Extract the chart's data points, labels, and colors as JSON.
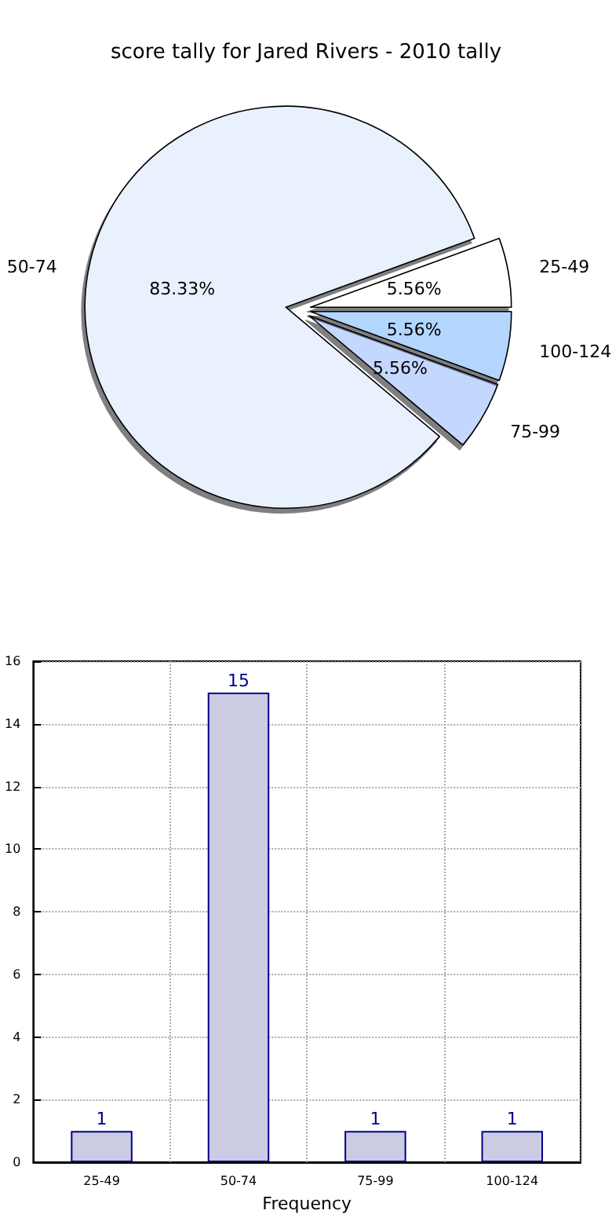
{
  "chart_data": [
    {
      "type": "pie",
      "title": "score tally for Jared Rivers - 2010 tally",
      "categories": [
        "25-49",
        "50-74",
        "75-99",
        "100-124"
      ],
      "values": [
        5.56,
        83.33,
        5.56,
        5.56
      ],
      "colors": [
        "#ffffff",
        "#eaf1fe",
        "#c4d7fe",
        "#b3d6fe"
      ],
      "value_labels": [
        "5.56%",
        "83.33%",
        "5.56%",
        "5.56%"
      ]
    },
    {
      "type": "bar",
      "xlabel": "Frequency",
      "categories": [
        "25-49",
        "50-74",
        "75-99",
        "100-124"
      ],
      "values": [
        1,
        15,
        1,
        1
      ],
      "color": "#cbcbe3",
      "ylim": [
        0,
        16
      ],
      "yticks": [
        0,
        2,
        4,
        6,
        8,
        10,
        12,
        14,
        16
      ],
      "grid": true,
      "data_labels": true
    }
  ]
}
